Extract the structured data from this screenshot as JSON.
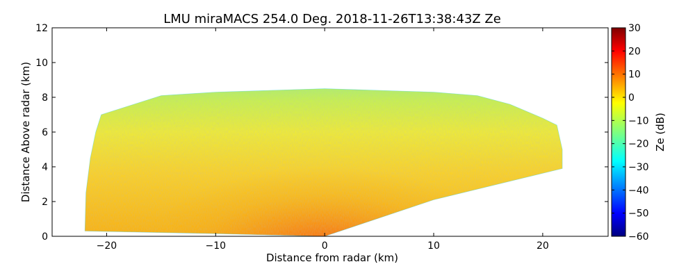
{
  "chart_data": {
    "type": "heatmap",
    "title": "LMU miraMACS 254.0 Deg. 2018-11-26T13:38:43Z  Ze",
    "xlabel": "Distance from radar (km)",
    "ylabel": "Distance Above radar  (km)",
    "xlim": [
      -25,
      26
    ],
    "ylim": [
      0,
      12
    ],
    "xticks": [
      -20,
      -10,
      0,
      10,
      20
    ],
    "yticks": [
      0,
      2,
      4,
      6,
      8,
      10,
      12
    ],
    "colorbar": {
      "label": "Ze (dB)",
      "range": [
        -60,
        30
      ],
      "ticks": [
        30,
        20,
        10,
        0,
        -10,
        -20,
        -30,
        -40,
        -50,
        -60
      ],
      "colormap": "jet"
    },
    "scan_boundary": {
      "left_edge": [
        [
          -22,
          0.3
        ],
        [
          -21.9,
          2.5
        ],
        [
          -21.5,
          4.5
        ],
        [
          -21,
          6
        ],
        [
          -20.5,
          7
        ]
      ],
      "top_edge": [
        [
          -20.5,
          7
        ],
        [
          -18,
          7.5
        ],
        [
          -15,
          8.1
        ],
        [
          -10,
          8.3
        ],
        [
          -5,
          8.4
        ],
        [
          0,
          8.5
        ],
        [
          5,
          8.4
        ],
        [
          10,
          8.3
        ],
        [
          14,
          8.1
        ],
        [
          17,
          7.6
        ],
        [
          20,
          6.8
        ],
        [
          21.3,
          6.4
        ],
        [
          21.8,
          5
        ]
      ],
      "right_edge": [
        [
          21.8,
          5
        ],
        [
          21.8,
          3.9
        ],
        [
          10,
          2.1
        ],
        [
          0,
          0
        ]
      ],
      "bottom_edge": [
        [
          0,
          0
        ],
        [
          -10,
          0.15
        ],
        [
          -22,
          0.3
        ]
      ]
    },
    "reflectivity_regions": [
      {
        "region": "near-radar core",
        "center": [
          0,
          0.6
        ],
        "ze_db": 12
      },
      {
        "region": "lower layer",
        "center": [
          -5,
          1.8
        ],
        "ze_db": 5
      },
      {
        "region": "lower left",
        "center": [
          -18,
          1.5
        ],
        "ze_db": -3
      },
      {
        "region": "mid layer",
        "center": [
          0,
          4
        ],
        "ze_db": -5
      },
      {
        "region": "upper layer",
        "center": [
          0,
          6.5
        ],
        "ze_db": -17
      },
      {
        "region": "cloud top",
        "center": [
          0,
          8
        ],
        "ze_db": -26
      }
    ]
  }
}
